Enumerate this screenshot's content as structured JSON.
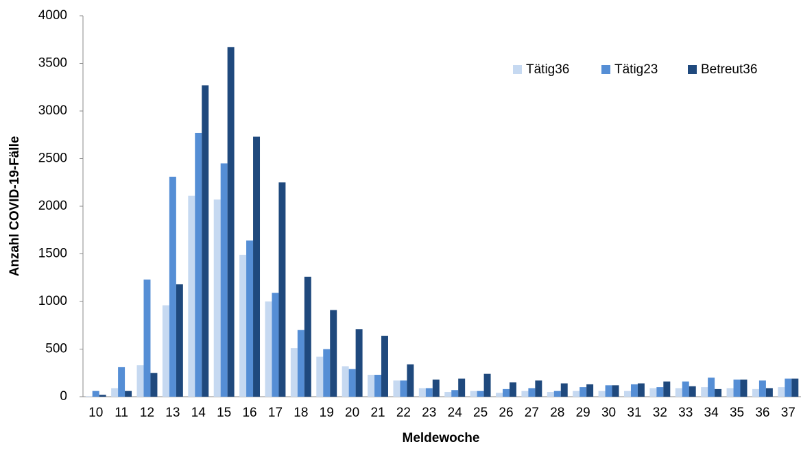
{
  "chart_data": {
    "type": "bar",
    "x_label": "Meldewoche",
    "y_label": "Anzahl COVID-19-Fälle",
    "categories": [
      "10",
      "11",
      "12",
      "13",
      "14",
      "15",
      "16",
      "17",
      "18",
      "19",
      "20",
      "21",
      "22",
      "23",
      "24",
      "25",
      "26",
      "27",
      "28",
      "29",
      "30",
      "31",
      "32",
      "33",
      "34",
      "35",
      "36",
      "37"
    ],
    "series": [
      {
        "name": "Tätig36",
        "color": "#c6d9f1",
        "values": [
          5,
          90,
          330,
          960,
          2110,
          2070,
          1490,
          1000,
          510,
          420,
          320,
          230,
          170,
          90,
          50,
          60,
          40,
          60,
          50,
          60,
          60,
          60,
          90,
          90,
          100,
          90,
          80,
          100
        ]
      },
      {
        "name": "Tätig23",
        "color": "#558ed5",
        "values": [
          60,
          310,
          1230,
          2310,
          2770,
          2450,
          1640,
          1090,
          700,
          500,
          290,
          230,
          170,
          90,
          70,
          60,
          80,
          90,
          60,
          100,
          120,
          130,
          100,
          160,
          200,
          180,
          170,
          190
        ]
      },
      {
        "name": "Betreut36",
        "color": "#1f497d",
        "values": [
          20,
          60,
          250,
          1180,
          3270,
          3670,
          2730,
          2250,
          1260,
          910,
          710,
          640,
          340,
          180,
          190,
          240,
          150,
          170,
          140,
          130,
          120,
          140,
          160,
          110,
          80,
          180,
          90,
          190
        ]
      }
    ],
    "ylim": [
      0,
      4000
    ],
    "yticks": [
      0,
      500,
      1000,
      1500,
      2000,
      2500,
      3000,
      3500,
      4000
    ],
    "grid": false,
    "legend": "upper-right"
  }
}
